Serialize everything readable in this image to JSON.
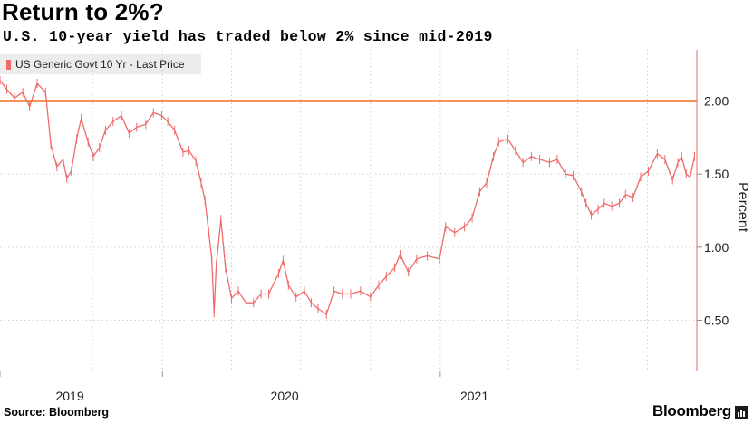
{
  "title": "Return to 2%?",
  "subtitle": "U.S. 10-year yield has traded below 2% since mid-2019",
  "source": "Source: Bloomberg",
  "brand": "Bloomberg",
  "colors": {
    "series": "#f06a6a",
    "reference": "#f07020",
    "axis": "#e46b6b",
    "grid": "#cfcfcf"
  },
  "chart_data": {
    "type": "line",
    "title": "Return to 2%?",
    "subtitle": "U.S. 10-year yield has traded below 2% since mid-2019",
    "ylabel": "Percent",
    "xlabel": "",
    "legend": "top-left",
    "grid": true,
    "ylim": [
      0.15,
      2.35
    ],
    "yticks": [
      "0.50",
      "1.00",
      "1.50",
      "2.00"
    ],
    "xticks": [
      "2019",
      "2020",
      "2021"
    ],
    "xlim": [
      "2019-06-01",
      "2021-12-05"
    ],
    "reference_line": {
      "y": 2.0
    },
    "series": [
      {
        "name": "US Generic Govt 10 Yr - Last Price",
        "x": [
          "2019-06-01",
          "2019-06-10",
          "2019-06-20",
          "2019-07-01",
          "2019-07-10",
          "2019-07-20",
          "2019-07-31",
          "2019-08-07",
          "2019-08-15",
          "2019-08-23",
          "2019-08-28",
          "2019-09-03",
          "2019-09-10",
          "2019-09-16",
          "2019-09-25",
          "2019-10-02",
          "2019-10-10",
          "2019-10-18",
          "2019-10-28",
          "2019-11-08",
          "2019-11-18",
          "2019-11-28",
          "2019-12-10",
          "2019-12-20",
          "2019-12-31",
          "2020-01-08",
          "2020-01-17",
          "2020-01-28",
          "2020-02-05",
          "2020-02-14",
          "2020-02-21",
          "2020-02-26",
          "2020-03-02",
          "2020-03-06",
          "2020-03-09",
          "2020-03-12",
          "2020-03-18",
          "2020-03-24",
          "2020-04-01",
          "2020-04-10",
          "2020-04-20",
          "2020-04-30",
          "2020-05-10",
          "2020-05-20",
          "2020-06-02",
          "2020-06-08",
          "2020-06-15",
          "2020-06-25",
          "2020-07-06",
          "2020-07-15",
          "2020-07-24",
          "2020-08-04",
          "2020-08-14",
          "2020-08-25",
          "2020-09-05",
          "2020-09-18",
          "2020-10-01",
          "2020-10-12",
          "2020-10-22",
          "2020-11-02",
          "2020-11-09",
          "2020-11-20",
          "2020-12-01",
          "2020-12-15",
          "2020-12-31",
          "2021-01-08",
          "2021-01-20",
          "2021-02-02",
          "2021-02-12",
          "2021-02-22",
          "2021-03-03",
          "2021-03-12",
          "2021-03-19",
          "2021-03-31",
          "2021-04-10",
          "2021-04-20",
          "2021-05-01",
          "2021-05-12",
          "2021-05-25",
          "2021-06-04",
          "2021-06-15",
          "2021-06-25",
          "2021-07-06",
          "2021-07-12",
          "2021-07-19",
          "2021-07-28",
          "2021-08-05",
          "2021-08-15",
          "2021-08-25",
          "2021-09-02",
          "2021-09-12",
          "2021-09-22",
          "2021-10-02",
          "2021-10-14",
          "2021-10-24",
          "2021-11-03",
          "2021-11-10",
          "2021-11-15",
          "2021-11-21",
          "2021-11-26",
          "2021-12-02"
        ],
        "y": [
          2.14,
          2.08,
          2.02,
          2.06,
          1.96,
          2.12,
          2.06,
          1.7,
          1.55,
          1.6,
          1.47,
          1.52,
          1.74,
          1.88,
          1.72,
          1.62,
          1.68,
          1.8,
          1.86,
          1.9,
          1.78,
          1.82,
          1.84,
          1.92,
          1.9,
          1.86,
          1.8,
          1.65,
          1.66,
          1.59,
          1.44,
          1.32,
          1.1,
          0.92,
          0.55,
          0.88,
          1.19,
          0.86,
          0.65,
          0.7,
          0.62,
          0.62,
          0.68,
          0.68,
          0.82,
          0.91,
          0.74,
          0.66,
          0.7,
          0.62,
          0.58,
          0.54,
          0.7,
          0.68,
          0.68,
          0.7,
          0.66,
          0.74,
          0.8,
          0.86,
          0.95,
          0.83,
          0.92,
          0.94,
          0.92,
          1.14,
          1.1,
          1.14,
          1.2,
          1.38,
          1.44,
          1.62,
          1.72,
          1.74,
          1.66,
          1.58,
          1.62,
          1.6,
          1.58,
          1.6,
          1.5,
          1.49,
          1.38,
          1.3,
          1.22,
          1.26,
          1.3,
          1.28,
          1.3,
          1.36,
          1.34,
          1.48,
          1.52,
          1.64,
          1.6,
          1.46,
          1.58,
          1.62,
          1.5,
          1.48,
          1.62
        ]
      }
    ]
  }
}
